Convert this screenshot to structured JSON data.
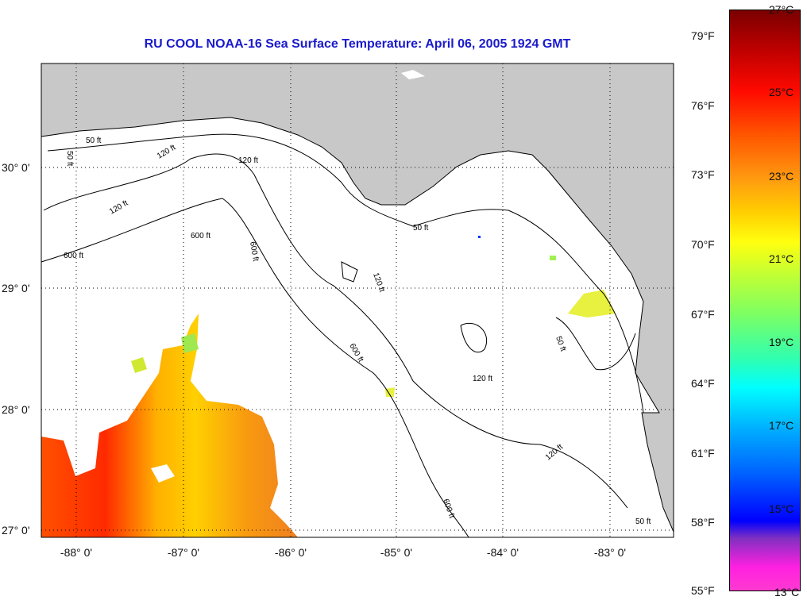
{
  "title": "RU COOL  NOAA-16  Sea Surface Temperature:  April 06, 2005 1924 GMT",
  "x_ticks": [
    "-88° 0'",
    "-87° 0'",
    "-86° 0'",
    "-85° 0'",
    "-84° 0'",
    "-83° 0'"
  ],
  "y_ticks": [
    "30° 0'",
    "29° 0'",
    "28° 0'",
    "27° 0'"
  ],
  "colorbar": {
    "fahrenheit": [
      "79°F",
      "76°F",
      "73°F",
      "70°F",
      "67°F",
      "64°F",
      "61°F",
      "58°F",
      "55°F"
    ],
    "celsius": [
      "27°C",
      "25°C",
      "23°C",
      "21°C",
      "19°C",
      "17°C",
      "15°C",
      "13°C"
    ]
  },
  "contour_labels": [
    "50 ft",
    "120 ft",
    "600 ft",
    "50 ft",
    "120 ft",
    "600 ft",
    "120 ft",
    "50 ft",
    "600 ft",
    "120 ft",
    "120 ft",
    "600 ft",
    "50 ft",
    "120 ft",
    "600 ft",
    "50 ft"
  ],
  "colors": {
    "land": "#c8c8c8",
    "ocean": "#ffffff",
    "title": "#1a1acc"
  }
}
